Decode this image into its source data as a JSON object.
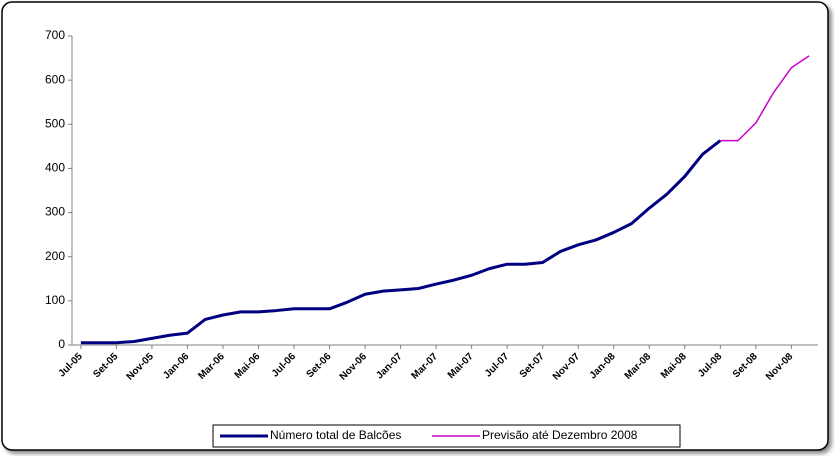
{
  "chart_data": {
    "type": "line",
    "categories": [
      "Jul-05",
      null,
      "Set-05",
      null,
      "Nov-05",
      null,
      "Jan-06",
      null,
      "Mar-06",
      null,
      "Mai-06",
      null,
      "Jul-06",
      null,
      "Set-06",
      null,
      "Nov-06",
      null,
      "Jan-07",
      null,
      "Mar-07",
      null,
      "Mai-07",
      null,
      "Jul-07",
      null,
      "Set-07",
      null,
      "Nov-07",
      null,
      "Jan-08",
      null,
      "Mar-08",
      null,
      "Mai-08",
      null,
      "Jul-08",
      null,
      "Set-08",
      null,
      "Nov-08",
      null
    ],
    "series": [
      {
        "name": "Número total de Balcões",
        "color": "#000080",
        "values": [
          5,
          5,
          5,
          8,
          15,
          22,
          27,
          58,
          68,
          75,
          75,
          78,
          82,
          82,
          82,
          97,
          115,
          122,
          125,
          128,
          138,
          147,
          158,
          173,
          183,
          183,
          187,
          212,
          227,
          238,
          255,
          275,
          310,
          342,
          382,
          432,
          463,
          null,
          null,
          null,
          null,
          null
        ]
      },
      {
        "name": "Previsão até Dezembro 2008",
        "color": "#cc00cc",
        "values": [
          null,
          null,
          null,
          null,
          null,
          null,
          null,
          null,
          null,
          null,
          null,
          null,
          null,
          null,
          null,
          null,
          null,
          null,
          null,
          null,
          null,
          null,
          null,
          null,
          null,
          null,
          null,
          null,
          null,
          null,
          null,
          null,
          null,
          null,
          null,
          null,
          463,
          463,
          503,
          572,
          628,
          655
        ]
      }
    ],
    "ylim": [
      0,
      700
    ],
    "yticks": [
      0,
      100,
      200,
      300,
      400,
      500,
      600,
      700
    ],
    "legend": "bottom"
  }
}
